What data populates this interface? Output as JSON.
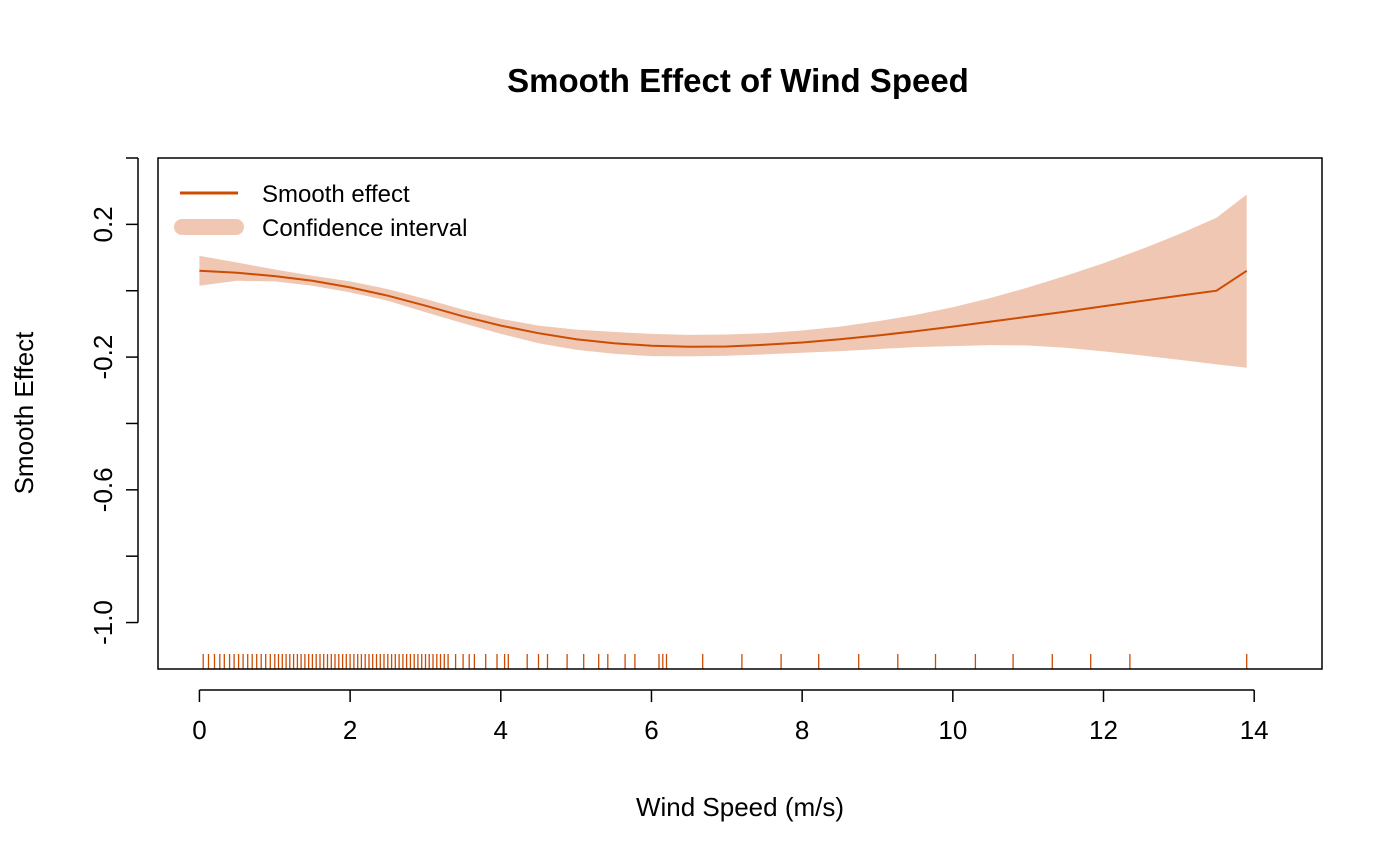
{
  "chart_data": {
    "type": "line",
    "title": "Smooth Effect of Wind Speed",
    "xlabel": "Wind Speed (m/s)",
    "ylabel": "Smooth Effect",
    "xlim": [
      -0.55,
      14.9
    ],
    "ylim": [
      -1.14,
      0.4
    ],
    "x_ticks": [
      0,
      2,
      4,
      6,
      8,
      10,
      12,
      14
    ],
    "x_tick_labels": [
      "0",
      "2",
      "4",
      "6",
      "8",
      "10",
      "12",
      "14"
    ],
    "y_ticks": [
      -1.0,
      -0.8,
      -0.6,
      -0.4,
      -0.2,
      0.0,
      0.2,
      0.4
    ],
    "y_tick_labels": [
      "-1.0",
      "",
      "-0.6",
      "",
      "-0.2",
      "",
      "0.2",
      ""
    ],
    "grid": false,
    "legend_position": "top-left",
    "colors": {
      "line": "#cc4c02",
      "band": "#efc7b3",
      "rug": "#cc4c02",
      "axis": "#000000"
    },
    "series": [
      {
        "name": "Smooth effect",
        "kind": "line",
        "x": [
          0,
          0.5,
          1,
          1.5,
          2,
          2.5,
          3,
          3.5,
          4,
          4.5,
          5,
          5.5,
          6,
          6.5,
          7,
          7.5,
          8,
          8.5,
          9,
          9.5,
          10,
          10.5,
          11,
          11.5,
          12,
          12.5,
          13,
          13.5,
          13.9
        ],
        "y": [
          0.06,
          0.054,
          0.044,
          0.03,
          0.01,
          -0.015,
          -0.045,
          -0.077,
          -0.105,
          -0.128,
          -0.146,
          -0.158,
          -0.166,
          -0.169,
          -0.168,
          -0.163,
          -0.156,
          -0.146,
          -0.135,
          -0.122,
          -0.108,
          -0.093,
          -0.078,
          -0.063,
          -0.047,
          -0.031,
          -0.015,
          0.0,
          0.06
        ]
      },
      {
        "name": "Confidence interval",
        "kind": "band",
        "x": [
          0,
          0.5,
          1,
          1.5,
          2,
          2.5,
          3,
          3.5,
          4,
          4.5,
          5,
          5.5,
          6,
          6.5,
          7,
          7.5,
          8,
          8.5,
          9,
          9.5,
          10,
          10.5,
          11,
          11.5,
          12,
          12.5,
          13,
          13.5,
          13.9
        ],
        "lower": [
          0.015,
          0.03,
          0.028,
          0.015,
          -0.005,
          -0.03,
          -0.065,
          -0.098,
          -0.13,
          -0.158,
          -0.178,
          -0.19,
          -0.197,
          -0.198,
          -0.196,
          -0.192,
          -0.187,
          -0.182,
          -0.176,
          -0.17,
          -0.167,
          -0.164,
          -0.165,
          -0.172,
          -0.183,
          -0.195,
          -0.208,
          -0.222,
          -0.232
        ],
        "upper": [
          0.105,
          0.085,
          0.064,
          0.045,
          0.028,
          0.005,
          -0.025,
          -0.057,
          -0.085,
          -0.105,
          -0.117,
          -0.124,
          -0.13,
          -0.133,
          -0.132,
          -0.128,
          -0.12,
          -0.108,
          -0.092,
          -0.073,
          -0.05,
          -0.022,
          0.01,
          0.045,
          0.083,
          0.125,
          0.17,
          0.22,
          0.29
        ]
      }
    ],
    "rug": [
      0.05,
      0.12,
      0.2,
      0.27,
      0.33,
      0.4,
      0.46,
      0.52,
      0.58,
      0.64,
      0.7,
      0.76,
      0.82,
      0.88,
      0.94,
      1.0,
      1.05,
      1.1,
      1.15,
      1.2,
      1.25,
      1.3,
      1.35,
      1.4,
      1.45,
      1.5,
      1.55,
      1.6,
      1.65,
      1.7,
      1.75,
      1.8,
      1.85,
      1.9,
      1.95,
      2.0,
      2.05,
      2.1,
      2.15,
      2.2,
      2.25,
      2.3,
      2.35,
      2.4,
      2.45,
      2.5,
      2.55,
      2.6,
      2.65,
      2.7,
      2.75,
      2.8,
      2.85,
      2.9,
      2.95,
      3.0,
      3.05,
      3.1,
      3.15,
      3.2,
      3.25,
      3.3,
      3.4,
      3.5,
      3.58,
      3.65,
      3.8,
      3.95,
      4.05,
      4.1,
      4.35,
      4.5,
      4.62,
      4.88,
      5.1,
      5.3,
      5.42,
      5.65,
      5.78,
      6.1,
      6.15,
      6.2,
      6.68,
      7.2,
      7.72,
      8.22,
      8.75,
      9.27,
      9.77,
      10.3,
      10.8,
      11.32,
      11.83,
      12.35,
      13.9
    ]
  }
}
